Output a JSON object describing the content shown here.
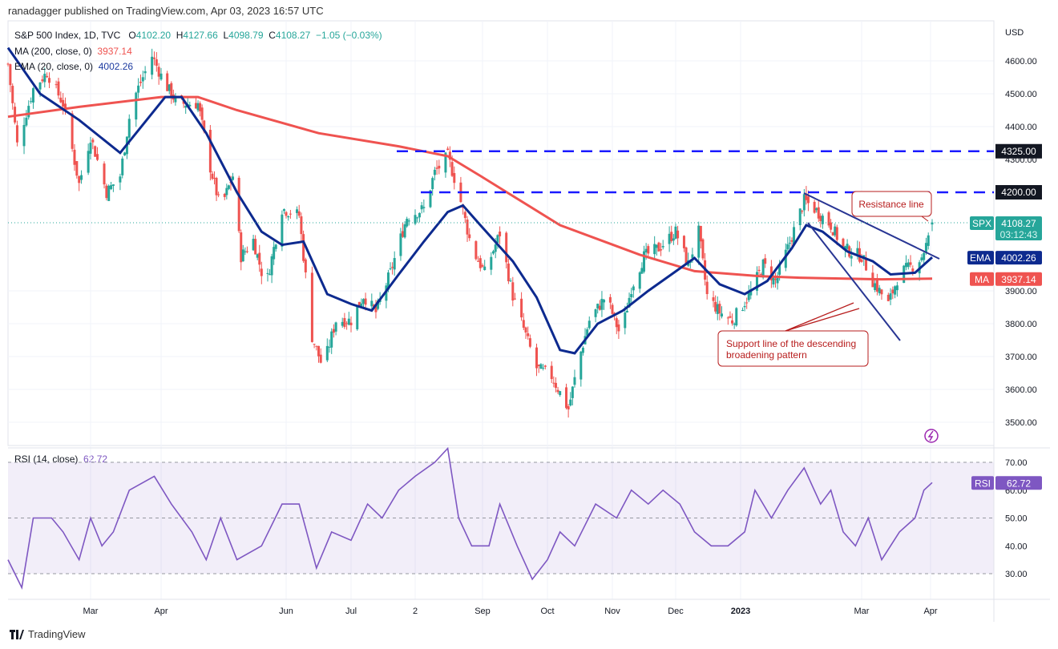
{
  "header": {
    "published": "ranadagger published on TradingView.com, Apr 03, 2023 16:57 UTC"
  },
  "legend": {
    "symbol": "S&P 500 Index, 1D, TVC",
    "o_label": "O",
    "o": "4102.20",
    "h_label": "H",
    "h": "4127.66",
    "l_label": "L",
    "l": "4098.79",
    "c_label": "C",
    "c": "4108.27",
    "change": "−1.05 (−0.03%)",
    "ma_label": "MA (200, close, 0)",
    "ma_value": "3937.14",
    "ema_label": "EMA (20, close, 0)",
    "ema_value": "4002.26",
    "rsi_label": "RSI (14, close)",
    "rsi_value": "62.72"
  },
  "price_axis": {
    "unit": "USD",
    "ticks": [
      "4600.00",
      "4500.00",
      "4400.00",
      "4300.00",
      "3900.00",
      "3800.00",
      "3700.00",
      "3600.00",
      "3500.00"
    ],
    "tags": {
      "spx_label": "SPX",
      "spx": "4108.27",
      "countdown": "03:12:43",
      "ema_label": "EMA",
      "ema": "4002.26",
      "ma_label": "MA",
      "ma": "3937.14",
      "l4325": "4325.00",
      "l4200": "4200.00"
    }
  },
  "rsi_axis": {
    "ticks": [
      "70.00",
      "60.00",
      "50.00",
      "40.00",
      "30.00"
    ],
    "tag_label": "RSI",
    "tag": "62.72"
  },
  "time_axis": {
    "ticks": [
      [
        "Mar",
        "2022-03-01"
      ],
      [
        "Apr",
        "2022-04-01"
      ],
      [
        "Jun",
        "2022-06-01"
      ],
      [
        "Jul",
        "2022-07-01"
      ],
      [
        "2",
        "2022-08-01"
      ],
      [
        "Sep",
        "2022-09-01"
      ],
      [
        "Oct",
        "2022-10-01"
      ],
      [
        "Nov",
        "2022-11-01"
      ],
      [
        "Dec",
        "2022-12-01"
      ],
      [
        "2023",
        "2023-01-01"
      ],
      [
        "Mar",
        "2023-03-01"
      ],
      [
        "Apr",
        "2023-04-01"
      ]
    ]
  },
  "annotations": {
    "resistance": "Resistance line",
    "support": "Support line of the descending broadening pattern"
  },
  "brand": "TradingView",
  "colors": {
    "up": "#26a69a",
    "down": "#ef5350",
    "ma": "#ef5350",
    "ema": "#0d2a8f",
    "rsi": "#7e57c2",
    "lines": "#1a1aff",
    "trend": "#283593"
  },
  "chart_data": {
    "type": "candlestick",
    "symbol": "SPX",
    "timeframe": "1D",
    "ylim": [
      3450,
      4680
    ],
    "levels": [
      4325,
      4200
    ],
    "close": [
      [
        "2022-01-24",
        4590
      ],
      [
        "2022-01-28",
        4345
      ],
      [
        "2022-02-04",
        4515
      ],
      [
        "2022-02-10",
        4565
      ],
      [
        "2022-02-17",
        4470
      ],
      [
        "2022-02-24",
        4225
      ],
      [
        "2022-03-01",
        4370
      ],
      [
        "2022-03-08",
        4200
      ],
      [
        "2022-03-14",
        4250
      ],
      [
        "2022-03-19",
        4470
      ],
      [
        "2022-03-28",
        4615
      ],
      [
        "2022-04-02",
        4540
      ],
      [
        "2022-04-09",
        4470
      ],
      [
        "2022-04-19",
        4470
      ],
      [
        "2022-04-25",
        4275
      ],
      [
        "2022-04-30",
        4150
      ],
      [
        "2022-05-06",
        4250
      ],
      [
        "2022-05-10",
        4005
      ],
      [
        "2022-05-16",
        4055
      ],
      [
        "2022-05-22",
        3910
      ],
      [
        "2022-05-30",
        4150
      ],
      [
        "2022-06-07",
        4130
      ],
      [
        "2022-06-13",
        3760
      ],
      [
        "2022-06-18",
        3665
      ],
      [
        "2022-06-24",
        3810
      ],
      [
        "2022-07-01",
        3810
      ],
      [
        "2022-07-07",
        3885
      ],
      [
        "2022-07-13",
        3835
      ],
      [
        "2022-07-20",
        3955
      ],
      [
        "2022-07-28",
        4125
      ],
      [
        "2022-08-05",
        4150
      ],
      [
        "2022-08-10",
        4260
      ],
      [
        "2022-08-16",
        4310
      ],
      [
        "2022-08-21",
        4200
      ],
      [
        "2022-08-27",
        4030
      ],
      [
        "2022-09-02",
        3955
      ],
      [
        "2022-09-09",
        4075
      ],
      [
        "2022-09-15",
        3885
      ],
      [
        "2022-09-20",
        3785
      ],
      [
        "2022-09-26",
        3665
      ],
      [
        "2022-10-03",
        3640
      ],
      [
        "2022-10-11",
        3540
      ],
      [
        "2022-10-16",
        3690
      ],
      [
        "2022-10-21",
        3810
      ],
      [
        "2022-10-29",
        3885
      ],
      [
        "2022-11-05",
        3760
      ],
      [
        "2022-11-10",
        3910
      ],
      [
        "2022-11-16",
        4005
      ],
      [
        "2022-11-23",
        4030
      ],
      [
        "2022-12-01",
        4080
      ],
      [
        "2022-12-07",
        3980
      ],
      [
        "2022-12-12",
        4080
      ],
      [
        "2022-12-16",
        3885
      ],
      [
        "2022-12-22",
        3835
      ],
      [
        "2022-12-28",
        3810
      ],
      [
        "2023-01-05",
        3885
      ],
      [
        "2023-01-12",
        3980
      ],
      [
        "2023-01-18",
        3930
      ],
      [
        "2023-01-24",
        4030
      ],
      [
        "2023-02-01",
        4175
      ],
      [
        "2023-02-06",
        4150
      ],
      [
        "2023-02-14",
        4100
      ],
      [
        "2023-02-20",
        4030
      ],
      [
        "2023-03-01",
        4005
      ],
      [
        "2023-03-06",
        3930
      ],
      [
        "2023-03-13",
        3860
      ],
      [
        "2023-03-18",
        3955
      ],
      [
        "2023-03-25",
        3980
      ],
      [
        "2023-03-28",
        4005
      ],
      [
        "2023-04-03",
        4108.27
      ]
    ],
    "ma200": [
      [
        "2022-01-24",
        4430
      ],
      [
        "2022-02-24",
        4460
      ],
      [
        "2022-04-01",
        4490
      ],
      [
        "2022-04-19",
        4490
      ],
      [
        "2022-05-08",
        4450
      ],
      [
        "2022-06-16",
        4380
      ],
      [
        "2022-07-24",
        4340
      ],
      [
        "2022-08-16",
        4310
      ],
      [
        "2022-08-31",
        4250
      ],
      [
        "2022-10-07",
        4100
      ],
      [
        "2022-11-14",
        4010
      ],
      [
        "2022-12-10",
        3960
      ],
      [
        "2023-01-10",
        3945
      ],
      [
        "2023-01-30",
        3940
      ],
      [
        "2023-03-10",
        3935
      ],
      [
        "2023-04-03",
        3937.14
      ]
    ],
    "ema20": [
      [
        "2022-01-24",
        4640
      ],
      [
        "2022-02-07",
        4500
      ],
      [
        "2022-02-24",
        4420
      ],
      [
        "2022-03-14",
        4320
      ],
      [
        "2022-04-03",
        4490
      ],
      [
        "2022-04-11",
        4490
      ],
      [
        "2022-04-23",
        4380
      ],
      [
        "2022-05-08",
        4200
      ],
      [
        "2022-05-20",
        4080
      ],
      [
        "2022-05-30",
        4040
      ],
      [
        "2022-06-09",
        4050
      ],
      [
        "2022-06-20",
        3890
      ],
      [
        "2022-07-01",
        3860
      ],
      [
        "2022-07-11",
        3840
      ],
      [
        "2022-07-24",
        3950
      ],
      [
        "2022-08-05",
        4050
      ],
      [
        "2022-08-16",
        4140
      ],
      [
        "2022-08-23",
        4160
      ],
      [
        "2022-08-31",
        4100
      ],
      [
        "2022-09-15",
        3990
      ],
      [
        "2022-09-26",
        3880
      ],
      [
        "2022-10-07",
        3720
      ],
      [
        "2022-10-14",
        3710
      ],
      [
        "2022-10-25",
        3800
      ],
      [
        "2022-11-06",
        3840
      ],
      [
        "2022-11-18",
        3900
      ],
      [
        "2022-11-29",
        3950
      ],
      [
        "2022-12-10",
        4000
      ],
      [
        "2022-12-22",
        3920
      ],
      [
        "2023-01-03",
        3890
      ],
      [
        "2023-01-14",
        3930
      ],
      [
        "2023-01-26",
        4030
      ],
      [
        "2023-02-02",
        4100
      ],
      [
        "2023-02-10",
        4080
      ],
      [
        "2023-02-22",
        4020
      ],
      [
        "2023-03-06",
        3990
      ],
      [
        "2023-03-14",
        3950
      ],
      [
        "2023-03-25",
        3955
      ],
      [
        "2023-04-03",
        4002.26
      ]
    ],
    "rsi": [
      [
        "2022-01-24",
        35
      ],
      [
        "2022-01-30",
        25
      ],
      [
        "2022-02-04",
        50
      ],
      [
        "2022-02-12",
        50
      ],
      [
        "2022-02-17",
        45
      ],
      [
        "2022-02-24",
        35
      ],
      [
        "2022-03-01",
        50
      ],
      [
        "2022-03-06",
        40
      ],
      [
        "2022-03-11",
        45
      ],
      [
        "2022-03-18",
        60
      ],
      [
        "2022-03-29",
        65
      ],
      [
        "2022-04-06",
        55
      ],
      [
        "2022-04-16",
        45
      ],
      [
        "2022-04-23",
        35
      ],
      [
        "2022-04-30",
        50
      ],
      [
        "2022-05-08",
        35
      ],
      [
        "2022-05-20",
        40
      ],
      [
        "2022-05-30",
        55
      ],
      [
        "2022-06-07",
        55
      ],
      [
        "2022-06-15",
        32
      ],
      [
        "2022-06-22",
        45
      ],
      [
        "2022-07-01",
        42
      ],
      [
        "2022-07-09",
        55
      ],
      [
        "2022-07-16",
        50
      ],
      [
        "2022-07-24",
        60
      ],
      [
        "2022-08-01",
        65
      ],
      [
        "2022-08-10",
        70
      ],
      [
        "2022-08-16",
        75
      ],
      [
        "2022-08-21",
        50
      ],
      [
        "2022-08-27",
        40
      ],
      [
        "2022-09-04",
        40
      ],
      [
        "2022-09-09",
        55
      ],
      [
        "2022-09-17",
        40
      ],
      [
        "2022-09-24",
        28
      ],
      [
        "2022-10-01",
        35
      ],
      [
        "2022-10-07",
        45
      ],
      [
        "2022-10-14",
        40
      ],
      [
        "2022-10-24",
        55
      ],
      [
        "2022-11-03",
        50
      ],
      [
        "2022-11-10",
        60
      ],
      [
        "2022-11-18",
        55
      ],
      [
        "2022-11-25",
        60
      ],
      [
        "2022-12-03",
        55
      ],
      [
        "2022-12-10",
        45
      ],
      [
        "2022-12-18",
        40
      ],
      [
        "2022-12-26",
        40
      ],
      [
        "2023-01-03",
        45
      ],
      [
        "2023-01-08",
        60
      ],
      [
        "2023-01-16",
        50
      ],
      [
        "2023-01-24",
        60
      ],
      [
        "2023-02-01",
        68
      ],
      [
        "2023-02-09",
        55
      ],
      [
        "2023-02-14",
        60
      ],
      [
        "2023-02-20",
        45
      ],
      [
        "2023-02-26",
        40
      ],
      [
        "2023-03-04",
        50
      ],
      [
        "2023-03-10",
        35
      ],
      [
        "2023-03-18",
        45
      ],
      [
        "2023-03-25",
        50
      ],
      [
        "2023-03-29",
        60
      ],
      [
        "2023-04-03",
        62.72
      ]
    ],
    "rsi_ylim": [
      20,
      80
    ],
    "rsi_bands": [
      30,
      50,
      70
    ]
  }
}
